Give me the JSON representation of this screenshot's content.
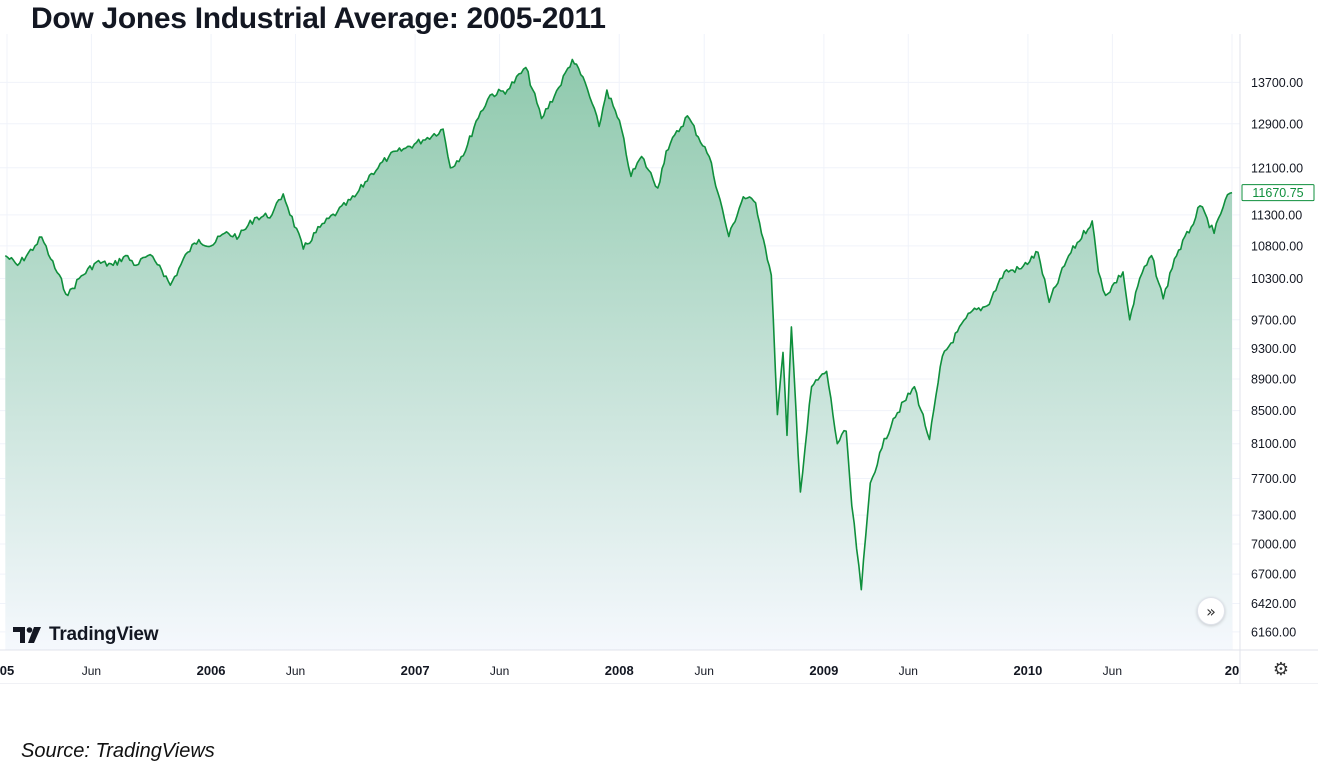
{
  "colors": {
    "line": "#0f8f3c",
    "fill_top": "#8fc9ad",
    "fill_bottom": "#f5f8fd",
    "grid": "#f0f3fa",
    "axis_text": "#131722",
    "last_label": "#0f8f3c"
  },
  "branding": {
    "logo_icon": "tradingview-logo-icon",
    "name": "TradingView"
  },
  "footer": {
    "source": "Source: TradingViews"
  },
  "controls": {
    "scroll_icon": "double-chevron-right-icon",
    "scroll_glyph": "»",
    "settings_icon": "gear-icon",
    "settings_glyph": "⚙"
  },
  "chart_data": {
    "type": "area",
    "title": "Dow Jones Industrial Average: 2005-2011",
    "xlabel": "",
    "ylabel": "",
    "scale": "log",
    "ylim": [
      6000,
      14700
    ],
    "y_ticks": [
      13700,
      12900,
      12100,
      11300,
      10800,
      10300,
      9700,
      9300,
      8900,
      8500,
      8100,
      7700,
      7300,
      7000,
      6700,
      6420,
      6160
    ],
    "y_tick_labels": [
      "13700.00",
      "12900.00",
      "12100.00",
      "11300.00",
      "10800.00",
      "10300.00",
      "9700.00",
      "9300.00",
      "8900.00",
      "8500.00",
      "8100.00",
      "7700.00",
      "7300.00",
      "7000.00",
      "6700.00",
      "6420.00",
      "6160.00"
    ],
    "x_ticks": [
      {
        "label": "05",
        "date": "2005-01",
        "bold": true
      },
      {
        "label": "Jun",
        "date": "2005-06",
        "bold": false
      },
      {
        "label": "2006",
        "date": "2006-01",
        "bold": true
      },
      {
        "label": "Jun",
        "date": "2006-06",
        "bold": false
      },
      {
        "label": "2007",
        "date": "2007-01",
        "bold": true
      },
      {
        "label": "Jun",
        "date": "2007-06",
        "bold": false
      },
      {
        "label": "2008",
        "date": "2008-01",
        "bold": true
      },
      {
        "label": "Jun",
        "date": "2008-06",
        "bold": false
      },
      {
        "label": "2009",
        "date": "2009-01",
        "bold": true
      },
      {
        "label": "Jun",
        "date": "2009-06",
        "bold": false
      },
      {
        "label": "2010",
        "date": "2010-01",
        "bold": true
      },
      {
        "label": "Jun",
        "date": "2010-06",
        "bold": false
      },
      {
        "label": "20",
        "date": "2011-01",
        "bold": true
      }
    ],
    "last_value_label": "11670.75",
    "grid": true,
    "series": [
      {
        "values": [
          {
            "x": "2004-12-29",
            "y": 10650
          },
          {
            "x": "2005-01-20",
            "y": 10500
          },
          {
            "x": "2005-02-20",
            "y": 10800
          },
          {
            "x": "2005-03-04",
            "y": 10940
          },
          {
            "x": "2005-03-20",
            "y": 10600
          },
          {
            "x": "2005-04-20",
            "y": 10050
          },
          {
            "x": "2005-05-10",
            "y": 10300
          },
          {
            "x": "2005-06-10",
            "y": 10550
          },
          {
            "x": "2005-07-10",
            "y": 10500
          },
          {
            "x": "2005-08-01",
            "y": 10650
          },
          {
            "x": "2005-08-20",
            "y": 10500
          },
          {
            "x": "2005-09-10",
            "y": 10650
          },
          {
            "x": "2005-10-01",
            "y": 10500
          },
          {
            "x": "2005-10-20",
            "y": 10200
          },
          {
            "x": "2005-11-20",
            "y": 10700
          },
          {
            "x": "2005-12-10",
            "y": 10900
          },
          {
            "x": "2006-01-01",
            "y": 10800
          },
          {
            "x": "2006-01-25",
            "y": 11000
          },
          {
            "x": "2006-02-20",
            "y": 10950
          },
          {
            "x": "2006-03-20",
            "y": 11250
          },
          {
            "x": "2006-04-20",
            "y": 11300
          },
          {
            "x": "2006-05-10",
            "y": 11650
          },
          {
            "x": "2006-06-15",
            "y": 10750
          },
          {
            "x": "2006-07-15",
            "y": 11100
          },
          {
            "x": "2006-08-15",
            "y": 11350
          },
          {
            "x": "2006-09-15",
            "y": 11600
          },
          {
            "x": "2006-10-15",
            "y": 12000
          },
          {
            "x": "2006-11-15",
            "y": 12300
          },
          {
            "x": "2006-12-15",
            "y": 12450
          },
          {
            "x": "2007-01-15",
            "y": 12600
          },
          {
            "x": "2007-02-20",
            "y": 12800
          },
          {
            "x": "2007-03-05",
            "y": 12100
          },
          {
            "x": "2007-04-01",
            "y": 12400
          },
          {
            "x": "2007-04-20",
            "y": 12950
          },
          {
            "x": "2007-05-15",
            "y": 13450
          },
          {
            "x": "2007-06-15",
            "y": 13550
          },
          {
            "x": "2007-07-18",
            "y": 14000
          },
          {
            "x": "2007-08-15",
            "y": 13000
          },
          {
            "x": "2007-09-15",
            "y": 13600
          },
          {
            "x": "2007-10-09",
            "y": 14165
          },
          {
            "x": "2007-11-01",
            "y": 13700
          },
          {
            "x": "2007-11-26",
            "y": 12850
          },
          {
            "x": "2007-12-10",
            "y": 13550
          },
          {
            "x": "2008-01-05",
            "y": 12800
          },
          {
            "x": "2008-01-22",
            "y": 11950
          },
          {
            "x": "2008-02-10",
            "y": 12300
          },
          {
            "x": "2008-03-10",
            "y": 11750
          },
          {
            "x": "2008-03-25",
            "y": 12400
          },
          {
            "x": "2008-05-02",
            "y": 13050
          },
          {
            "x": "2008-06-10",
            "y": 12300
          },
          {
            "x": "2008-07-15",
            "y": 10950
          },
          {
            "x": "2008-08-10",
            "y": 11600
          },
          {
            "x": "2008-09-01",
            "y": 11500
          },
          {
            "x": "2008-09-15",
            "y": 10900
          },
          {
            "x": "2008-09-29",
            "y": 10350
          },
          {
            "x": "2008-10-10",
            "y": 8450
          },
          {
            "x": "2008-10-20",
            "y": 9250
          },
          {
            "x": "2008-10-27",
            "y": 8200
          },
          {
            "x": "2008-11-04",
            "y": 9600
          },
          {
            "x": "2008-11-20",
            "y": 7550
          },
          {
            "x": "2008-12-10",
            "y": 8800
          },
          {
            "x": "2009-01-06",
            "y": 9000
          },
          {
            "x": "2009-01-25",
            "y": 8100
          },
          {
            "x": "2009-02-10",
            "y": 8250
          },
          {
            "x": "2009-02-20",
            "y": 7400
          },
          {
            "x": "2009-03-09",
            "y": 6550
          },
          {
            "x": "2009-03-25",
            "y": 7650
          },
          {
            "x": "2009-04-15",
            "y": 8050
          },
          {
            "x": "2009-05-05",
            "y": 8400
          },
          {
            "x": "2009-06-12",
            "y": 8800
          },
          {
            "x": "2009-07-09",
            "y": 8150
          },
          {
            "x": "2009-08-01",
            "y": 9200
          },
          {
            "x": "2009-09-20",
            "y": 9800
          },
          {
            "x": "2009-10-20",
            "y": 9900
          },
          {
            "x": "2009-11-20",
            "y": 10400
          },
          {
            "x": "2009-12-20",
            "y": 10450
          },
          {
            "x": "2010-01-19",
            "y": 10700
          },
          {
            "x": "2010-02-08",
            "y": 9950
          },
          {
            "x": "2010-03-15",
            "y": 10650
          },
          {
            "x": "2010-04-26",
            "y": 11200
          },
          {
            "x": "2010-05-07",
            "y": 10400
          },
          {
            "x": "2010-05-20",
            "y": 10050
          },
          {
            "x": "2010-06-20",
            "y": 10400
          },
          {
            "x": "2010-07-02",
            "y": 9700
          },
          {
            "x": "2010-07-20",
            "y": 10300
          },
          {
            "x": "2010-08-10",
            "y": 10650
          },
          {
            "x": "2010-08-31",
            "y": 10000
          },
          {
            "x": "2010-09-20",
            "y": 10600
          },
          {
            "x": "2010-10-20",
            "y": 11100
          },
          {
            "x": "2010-11-05",
            "y": 11450
          },
          {
            "x": "2010-11-30",
            "y": 11000
          },
          {
            "x": "2010-12-20",
            "y": 11550
          },
          {
            "x": "2011-01-01",
            "y": 11670.75
          }
        ]
      }
    ]
  }
}
